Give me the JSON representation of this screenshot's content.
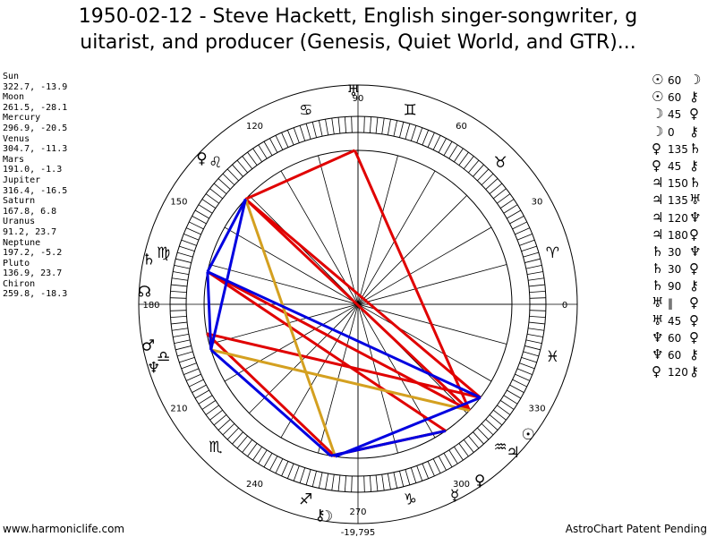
{
  "title_lines": [
    "1950-02-12 - Steve Hackett, English singer-songwriter, g",
    "uitarist, and producer (Genesis, Quiet World, and GTR)..."
  ],
  "planets": [
    {
      "name": "Sun",
      "coords": "322.7, -13.9"
    },
    {
      "name": "Moon",
      "coords": "261.5, -28.1"
    },
    {
      "name": "Mercury",
      "coords": "296.9, -20.5"
    },
    {
      "name": "Venus",
      "coords": "304.7, -11.3"
    },
    {
      "name": "Mars",
      "coords": "191.0, -1.3"
    },
    {
      "name": "Jupiter",
      "coords": "316.4, -16.5"
    },
    {
      "name": "Saturn",
      "coords": "167.8, 6.8"
    },
    {
      "name": "Uranus",
      "coords": "91.2, 23.7"
    },
    {
      "name": "Neptune",
      "coords": "197.2, -5.2"
    },
    {
      "name": "Pluto",
      "coords": "136.9, 23.7"
    },
    {
      "name": "Chiron",
      "coords": "259.8, -18.3"
    }
  ],
  "aspects": [
    {
      "p1": "☉",
      "angle": "60",
      "p2": "☽"
    },
    {
      "p1": "☉",
      "angle": "60",
      "p2": "⚷"
    },
    {
      "p1": "☽",
      "angle": "45",
      "p2": "♀"
    },
    {
      "p1": "☽",
      "angle": "0",
      "p2": "⚷"
    },
    {
      "p1": "♀",
      "angle": "135",
      "p2": "♄"
    },
    {
      "p1": "♀",
      "angle": "45",
      "p2": "⚷"
    },
    {
      "p1": "♃",
      "angle": "150",
      "p2": "♄"
    },
    {
      "p1": "♃",
      "angle": "135",
      "p2": "♅"
    },
    {
      "p1": "♃",
      "angle": "120",
      "p2": "♆"
    },
    {
      "p1": "♃",
      "angle": "180",
      "p2": "♀"
    },
    {
      "p1": "♄",
      "angle": "30",
      "p2": "♆"
    },
    {
      "p1": "♄",
      "angle": "30",
      "p2": "♀"
    },
    {
      "p1": "♄",
      "angle": "90",
      "p2": "⚷"
    },
    {
      "p1": "♅",
      "angle": "‖",
      "p2": "♀"
    },
    {
      "p1": "♅",
      "angle": "45",
      "p2": "♀"
    },
    {
      "p1": "♆",
      "angle": "60",
      "p2": "♀"
    },
    {
      "p1": "♆",
      "angle": "60",
      "p2": "⚷"
    },
    {
      "p1": "♀",
      "angle": "120",
      "p2": "⚷"
    }
  ],
  "wheel": {
    "degree_labels": [
      "0",
      "30",
      "60",
      "90",
      "120",
      "150",
      "180",
      "210",
      "240",
      "270",
      "300",
      "330"
    ],
    "sign_glyphs": [
      "♈",
      "♉",
      "♊",
      "♋",
      "♌",
      "♍",
      "♎",
      "♏",
      "♐",
      "♑",
      "♒",
      "♓"
    ],
    "bottom_value": "-19,795",
    "positions": [
      {
        "glyph": "☉",
        "lon": 322.7
      },
      {
        "glyph": "☽",
        "lon": 261.5
      },
      {
        "glyph": "☿",
        "lon": 296.9
      },
      {
        "glyph": "♀",
        "lon": 304.7
      },
      {
        "glyph": "♂",
        "lon": 191.0
      },
      {
        "glyph": "♃",
        "lon": 316.4
      },
      {
        "glyph": "♄",
        "lon": 167.8
      },
      {
        "glyph": "♅",
        "lon": 91.2
      },
      {
        "glyph": "♆",
        "lon": 197.2
      },
      {
        "glyph": "♀",
        "lon": 136.9
      },
      {
        "glyph": "⚷",
        "lon": 259.8
      },
      {
        "glyph": "☊",
        "lon": 176.5
      }
    ],
    "aspect_lines": [
      {
        "a": 322.7,
        "b": 136.9,
        "color": "#e00000"
      },
      {
        "a": 91.2,
        "b": 316.4,
        "color": "#e00000"
      },
      {
        "a": 136.9,
        "b": 91.2,
        "color": "#e00000"
      },
      {
        "a": 316.4,
        "b": 167.8,
        "color": "#e00000"
      },
      {
        "a": 304.7,
        "b": 167.8,
        "color": "#e00000"
      },
      {
        "a": 304.7,
        "b": 259.8,
        "color": "#e00000"
      },
      {
        "a": 322.7,
        "b": 191.0,
        "color": "#e00000"
      },
      {
        "a": 316.4,
        "b": 136.9,
        "color": "#e00000"
      },
      {
        "a": 261.5,
        "b": 191.0,
        "color": "#e00000"
      },
      {
        "a": 316.4,
        "b": 197.2,
        "color": "#d4a020"
      },
      {
        "a": 136.9,
        "b": 261.5,
        "color": "#d4a020"
      },
      {
        "a": 322.7,
        "b": 167.8,
        "color": "#0000e0"
      },
      {
        "a": 167.8,
        "b": 197.2,
        "color": "#0000e0"
      },
      {
        "a": 167.8,
        "b": 136.9,
        "color": "#0000e0"
      },
      {
        "a": 197.2,
        "b": 136.9,
        "color": "#0000e0"
      },
      {
        "a": 197.2,
        "b": 259.8,
        "color": "#0000e0"
      },
      {
        "a": 322.7,
        "b": 261.5,
        "color": "#0000e0"
      },
      {
        "a": 304.7,
        "b": 259.8,
        "color": "#0000e0"
      }
    ]
  },
  "footer": {
    "left": "www.harmoniclife.com",
    "right": "AstroChart Patent Pending"
  }
}
